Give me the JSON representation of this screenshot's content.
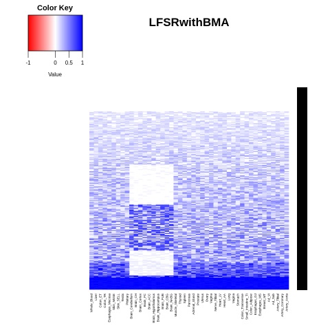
{
  "chart_data": {
    "type": "heatmap",
    "title": "LFSRwithBMA",
    "color_key": {
      "title": "Color Key",
      "xlabel": "Value",
      "ticks": [
        "-1",
        "0",
        "0.5",
        "1"
      ],
      "tick_values": [
        -1,
        0,
        0.5,
        1
      ],
      "range": [
        -1,
        1
      ],
      "colors": {
        "low": "#ff0000",
        "mid": "#ffffff",
        "high": "#0000ff"
      }
    },
    "columns": [
      "Whole_Blood",
      "Liver",
      "Colon_ET",
      "Colon_TR",
      "Esophagus_Mucosa",
      "Skin_NSSE",
      "Skin_SELL",
      "Testis",
      "Pituitary",
      "Brain_Cerebellum",
      "Brain_CH",
      "Brain_Cortex",
      "Brain_FC",
      "Brain_ACC",
      "Brain_Hypothalamus",
      "Brain_Hippocampus",
      "Brain_PUB",
      "Brain_CBG",
      "Brain_NABG",
      "Muscle_Skeletal",
      "Thyroid",
      "Spleen",
      "Pancreas",
      "Adrenal_Gland",
      "Prostate",
      "Uterus",
      "Ovary",
      "Vagina",
      "Nerve_Tibial",
      "Heart_LV",
      "Heart_AA",
      "Lung",
      "Vagina",
      "Stomach",
      "Colon_Transverse",
      "Small_Intestine_TI",
      "Colon_Adipose",
      "Esophagus_GJ",
      "Esophagus_MS",
      "Breast_MT",
      "Ad_Vi",
      "Ad_Sub",
      "Artery_Tibial",
      "Artery_Coronary",
      "Artery_Aorta"
    ],
    "row_count": 256,
    "row_dendrogram": true,
    "row_color_bar": "#000000"
  }
}
